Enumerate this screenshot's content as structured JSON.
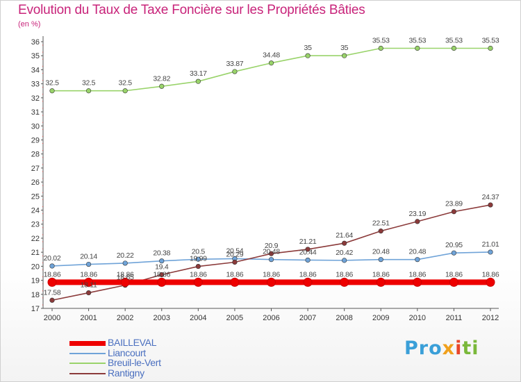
{
  "header": {
    "title": "Evolution du Taux de Taxe Foncière sur les Propriétés Bâties",
    "unit": "(en %)"
  },
  "logo": {
    "part1": "Pro",
    "part2": "x",
    "part3": "i",
    "part4": "ti"
  },
  "chart_data": {
    "type": "line",
    "title": "Evolution du Taux de Taxe Foncière sur les Propriétés Bâties",
    "ylabel": "(en %)",
    "xlabel": "",
    "ylim": [
      17,
      36
    ],
    "yticks": [
      17,
      18,
      19,
      20,
      21,
      22,
      23,
      24,
      25,
      26,
      27,
      28,
      29,
      30,
      31,
      32,
      33,
      34,
      35,
      36
    ],
    "x": [
      "2000",
      "2001",
      "2002",
      "2003",
      "2004",
      "2005",
      "2006",
      "2007",
      "2008",
      "2009",
      "2010",
      "2011",
      "2012"
    ],
    "grid": false,
    "legend_position": "bottom-left",
    "series": [
      {
        "name": "BAILLEVAL",
        "color": "#ee0000",
        "values": [
          18.86,
          18.86,
          18.86,
          18.86,
          18.86,
          18.86,
          18.86,
          18.86,
          18.86,
          18.86,
          18.86,
          18.86,
          18.86
        ],
        "labels": [
          "18.86",
          "18.86",
          "18.86",
          "18.86",
          "18.86",
          "18.86",
          "18.86",
          "18.86",
          "18.86",
          "18.86",
          "18.86",
          "18.86",
          "18.86"
        ]
      },
      {
        "name": "Liancourt",
        "color": "#6fa3d8",
        "values": [
          20.02,
          20.14,
          20.22,
          20.38,
          20.5,
          20.54,
          20.48,
          20.44,
          20.42,
          20.48,
          20.48,
          20.95,
          21.01
        ],
        "labels": [
          "20.02",
          "20.14",
          "20.22",
          "20.38",
          "20.5",
          "20.54",
          "20.48",
          "20.44",
          "20.42",
          "20.48",
          "20.48",
          "20.95",
          "21.01"
        ]
      },
      {
        "name": "Breuil-le-Vert",
        "color": "#99d36a",
        "values": [
          32.5,
          32.5,
          32.5,
          32.82,
          33.17,
          33.87,
          34.48,
          35,
          35,
          35.53,
          35.53,
          35.53,
          35.53
        ],
        "labels": [
          "32.5",
          "32.5",
          "32.5",
          "32.82",
          "33.17",
          "33.87",
          "34.48",
          "35",
          "35",
          "35.53",
          "35.53",
          "35.53",
          "35.53"
        ]
      },
      {
        "name": "Rantigny",
        "color": "#8b3a3a",
        "values": [
          17.58,
          18.11,
          18.65,
          19.4,
          19.99,
          20.29,
          20.9,
          21.21,
          21.64,
          22.51,
          23.19,
          23.89,
          24.37
        ],
        "labels": [
          "17.58",
          "18.11",
          "18.65",
          "19.4",
          "19.99",
          "20.29",
          "20.9",
          "21.21",
          "21.64",
          "22.51",
          "23.19",
          "23.89",
          "24.37"
        ]
      }
    ]
  }
}
